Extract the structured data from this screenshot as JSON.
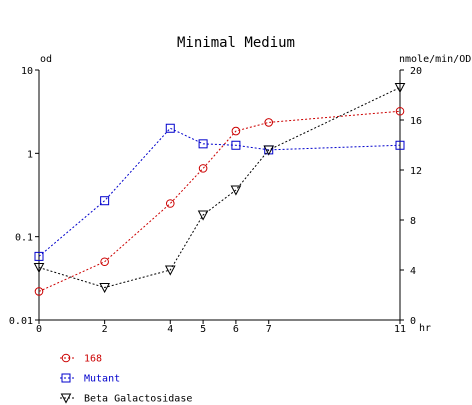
{
  "chart_data": {
    "type": "line",
    "title": "Minimal Medium",
    "xlabel": "hr",
    "ylabel_left": "od",
    "ylabel_right": "nmole/min/OD",
    "x_ticks": [
      0,
      2,
      4,
      5,
      6,
      7,
      11
    ],
    "xlim": [
      0,
      11
    ],
    "y_left": {
      "scale": "log",
      "lim": [
        0.01,
        10
      ],
      "ticks": [
        0.01,
        0.1,
        1,
        10
      ],
      "tick_labels": [
        "0.01",
        "0.1",
        "1",
        "10"
      ]
    },
    "y_right": {
      "scale": "linear",
      "lim": [
        0,
        20
      ],
      "ticks": [
        0,
        4,
        8,
        12,
        16,
        20
      ]
    },
    "grid": false,
    "legend_position": "bottom-left",
    "series": [
      {
        "name": "168",
        "color": "#cc0000",
        "marker": "circle",
        "axis": "left",
        "x": [
          0,
          2,
          4,
          5,
          6,
          7,
          11
        ],
        "values": [
          0.022,
          0.05,
          0.25,
          0.66,
          1.85,
          2.35,
          3.2
        ]
      },
      {
        "name": "Mutant",
        "color": "#0000cc",
        "marker": "square",
        "axis": "left",
        "x": [
          0,
          2,
          4,
          5,
          6,
          7,
          11
        ],
        "values": [
          0.058,
          0.27,
          2.0,
          1.3,
          1.25,
          1.1,
          1.25
        ]
      },
      {
        "name": "Beta Galactosidase",
        "color": "#000000",
        "marker": "triangle-down",
        "axis": "right",
        "x": [
          0,
          2,
          4,
          5,
          6,
          7,
          11
        ],
        "values": [
          4.2,
          2.6,
          4.0,
          8.4,
          10.4,
          13.6,
          18.6
        ]
      }
    ]
  }
}
